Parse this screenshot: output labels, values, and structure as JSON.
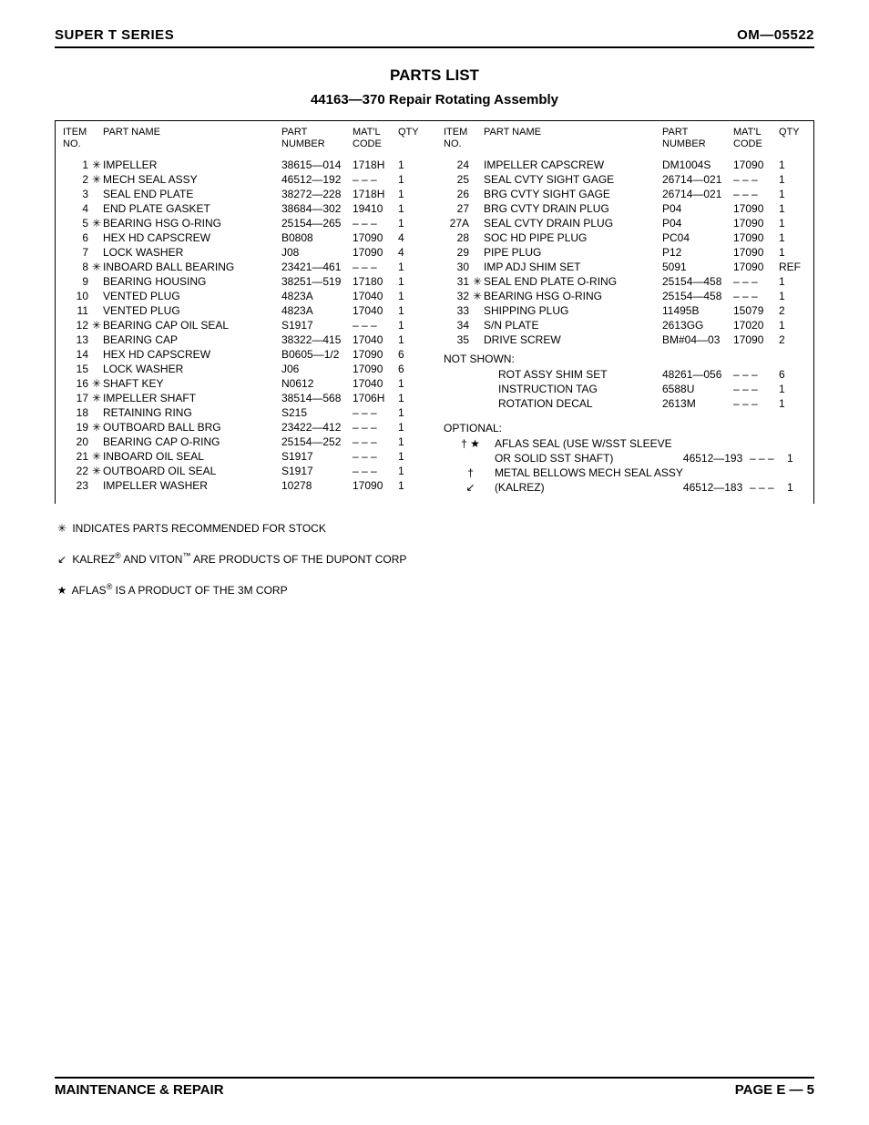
{
  "header": {
    "left": "SUPER T SERIES",
    "right": "OM—05522"
  },
  "titles": {
    "main": "PARTS LIST",
    "sub": "44163—370 Repair Rotating Assembly"
  },
  "columns": {
    "item": "ITEM\nNO.",
    "name": "PART NAME",
    "pnum": "PART\nNUMBER",
    "matl": "MAT'L\nCODE",
    "qty": "QTY"
  },
  "left_rows": [
    {
      "item": "1",
      "mark": "✳",
      "name": "IMPELLER",
      "pnum": "38615—014",
      "matl": "1718H",
      "qty": "1"
    },
    {
      "item": "2",
      "mark": "✳",
      "name": "MECH SEAL ASSY",
      "pnum": "46512—192",
      "matl": "– – –",
      "qty": "1"
    },
    {
      "item": "3",
      "mark": "",
      "name": "SEAL END PLATE",
      "pnum": "38272—228",
      "matl": "1718H",
      "qty": "1"
    },
    {
      "item": "4",
      "mark": "",
      "name": "END PLATE GASKET",
      "pnum": "38684—302",
      "matl": "19410",
      "qty": "1"
    },
    {
      "item": "5",
      "mark": "✳",
      "name": "BEARING HSG O-RING",
      "pnum": "25154—265",
      "matl": "– – –",
      "qty": "1"
    },
    {
      "item": "6",
      "mark": "",
      "name": "HEX HD CAPSCREW",
      "pnum": "B0808",
      "matl": "17090",
      "qty": "4"
    },
    {
      "item": "7",
      "mark": "",
      "name": "LOCK WASHER",
      "pnum": "J08",
      "matl": "17090",
      "qty": "4"
    },
    {
      "item": "8",
      "mark": "✳",
      "name": "INBOARD BALL BEARING",
      "pnum": "23421—461",
      "matl": "– – –",
      "qty": "1"
    },
    {
      "item": "9",
      "mark": "",
      "name": "BEARING HOUSING",
      "pnum": "38251—519",
      "matl": "17180",
      "qty": "1"
    },
    {
      "item": "10",
      "mark": "",
      "name": "VENTED PLUG",
      "pnum": "4823A",
      "matl": "17040",
      "qty": "1"
    },
    {
      "item": "11",
      "mark": "",
      "name": "VENTED PLUG",
      "pnum": "4823A",
      "matl": "17040",
      "qty": "1"
    },
    {
      "item": "12",
      "mark": "✳",
      "name": "BEARING CAP OIL SEAL",
      "pnum": "S1917",
      "matl": "– – –",
      "qty": "1"
    },
    {
      "item": "13",
      "mark": "",
      "name": "BEARING CAP",
      "pnum": "38322—415",
      "matl": "17040",
      "qty": "1"
    },
    {
      "item": "14",
      "mark": "",
      "name": "HEX HD CAPSCREW",
      "pnum": "B0605—1/2",
      "matl": "17090",
      "qty": "6"
    },
    {
      "item": "15",
      "mark": "",
      "name": "LOCK WASHER",
      "pnum": "J06",
      "matl": "17090",
      "qty": "6"
    },
    {
      "item": "16",
      "mark": "✳",
      "name": "SHAFT KEY",
      "pnum": "N0612",
      "matl": "17040",
      "qty": "1"
    },
    {
      "item": "17",
      "mark": "✳",
      "name": "IMPELLER SHAFT",
      "pnum": "38514—568",
      "matl": "1706H",
      "qty": "1"
    },
    {
      "item": "18",
      "mark": "",
      "name": "RETAINING RING",
      "pnum": "S215",
      "matl": "– – –",
      "qty": "1"
    },
    {
      "item": "19",
      "mark": "✳",
      "name": "OUTBOARD BALL BRG",
      "pnum": "23422—412",
      "matl": "– – –",
      "qty": "1"
    },
    {
      "item": "20",
      "mark": "",
      "name": "BEARING CAP O-RING",
      "pnum": "25154—252",
      "matl": "– – –",
      "qty": "1"
    },
    {
      "item": "21",
      "mark": "✳",
      "name": "INBOARD OIL SEAL",
      "pnum": "S1917",
      "matl": "– – –",
      "qty": "1"
    },
    {
      "item": "22",
      "mark": "✳",
      "name": "OUTBOARD OIL SEAL",
      "pnum": "S1917",
      "matl": "– – –",
      "qty": "1"
    },
    {
      "item": "23",
      "mark": "",
      "name": "IMPELLER WASHER",
      "pnum": "10278",
      "matl": "17090",
      "qty": "1"
    }
  ],
  "right_rows": [
    {
      "item": "24",
      "mark": "",
      "name": "IMPELLER CAPSCREW",
      "pnum": "DM1004S",
      "matl": "17090",
      "qty": "1"
    },
    {
      "item": "25",
      "mark": "",
      "name": "SEAL CVTY SIGHT GAGE",
      "pnum": "26714—021",
      "matl": "– – –",
      "qty": "1"
    },
    {
      "item": "26",
      "mark": "",
      "name": "BRG CVTY SIGHT GAGE",
      "pnum": "26714—021",
      "matl": "– – –",
      "qty": "1"
    },
    {
      "item": "27",
      "mark": "",
      "name": "BRG CVTY DRAIN PLUG",
      "pnum": "P04",
      "matl": "17090",
      "qty": "1"
    },
    {
      "item": "27A",
      "mark": "",
      "name": "SEAL CVTY DRAIN PLUG",
      "pnum": "P04",
      "matl": "17090",
      "qty": "1"
    },
    {
      "item": "28",
      "mark": "",
      "name": "SOC HD PIPE PLUG",
      "pnum": "PC04",
      "matl": "17090",
      "qty": "1"
    },
    {
      "item": "29",
      "mark": "",
      "name": "PIPE PLUG",
      "pnum": "P12",
      "matl": "17090",
      "qty": "1"
    },
    {
      "item": "30",
      "mark": "",
      "name": "IMP ADJ SHIM SET",
      "pnum": "5091",
      "matl": "17090",
      "qty": "REF"
    },
    {
      "item": "31",
      "mark": "✳",
      "name": "SEAL END PLATE O-RING",
      "pnum": "25154—458",
      "matl": "– – –",
      "qty": "1"
    },
    {
      "item": "32",
      "mark": "✳",
      "name": "BEARING HSG O-RING",
      "pnum": "25154—458",
      "matl": "– – –",
      "qty": "1"
    },
    {
      "item": "33",
      "mark": "",
      "name": "SHIPPING PLUG",
      "pnum": "11495B",
      "matl": "15079",
      "qty": "2"
    },
    {
      "item": "34",
      "mark": "",
      "name": "S/N PLATE",
      "pnum": "2613GG",
      "matl": "17020",
      "qty": "1"
    },
    {
      "item": "35",
      "mark": "",
      "name": "DRIVE SCREW",
      "pnum": "BM#04—03",
      "matl": "17090",
      "qty": "2"
    }
  ],
  "not_shown_label": "NOT SHOWN:",
  "not_shown_rows": [
    {
      "item": "",
      "mark": "",
      "name": "ROT ASSY SHIM SET",
      "pnum": "48261—056",
      "matl": "– – –",
      "qty": "6"
    },
    {
      "item": "",
      "mark": "",
      "name": "INSTRUCTION TAG",
      "pnum": "6588U",
      "matl": "– – –",
      "qty": "1"
    },
    {
      "item": "",
      "mark": "",
      "name": "ROTATION DECAL",
      "pnum": "2613M",
      "matl": "– – –",
      "qty": "1"
    }
  ],
  "optional_label": "OPTIONAL:",
  "optional_rows": [
    {
      "item": "",
      "mark": "† ★",
      "name": "AFLAS SEAL (USE W/SST SLEEVE",
      "pnum": "",
      "matl": "",
      "qty": ""
    },
    {
      "item": "",
      "mark": "",
      "name": "OR SOLID SST SHAFT)",
      "pnum": "46512—193",
      "matl": "– – –",
      "qty": "1"
    },
    {
      "item": "",
      "mark": "†",
      "name": "METAL BELLOWS MECH SEAL ASSY",
      "pnum": "",
      "matl": "",
      "qty": ""
    },
    {
      "item": "",
      "mark": "↙",
      "name": "(KALREZ)",
      "pnum": "46512—183",
      "matl": "– – –",
      "qty": "1"
    }
  ],
  "notes": {
    "n1_sym": "✳",
    "n1_text": "INDICATES PARTS RECOMMENDED FOR STOCK",
    "n2_sym": "↙",
    "n2_text_a": "KALREZ",
    "n2_reg": "®",
    "n2_text_b": " AND VITON",
    "n2_tm": "™",
    "n2_text_c": " ARE PRODUCTS OF THE DUPONT CORP",
    "n3_sym": "★",
    "n3_text_a": "AFLAS",
    "n3_reg": "®",
    "n3_text_b": " IS A PRODUCT OF THE 3M CORP"
  },
  "footer": {
    "left": "MAINTENANCE & REPAIR",
    "right": "PAGE E — 5"
  }
}
